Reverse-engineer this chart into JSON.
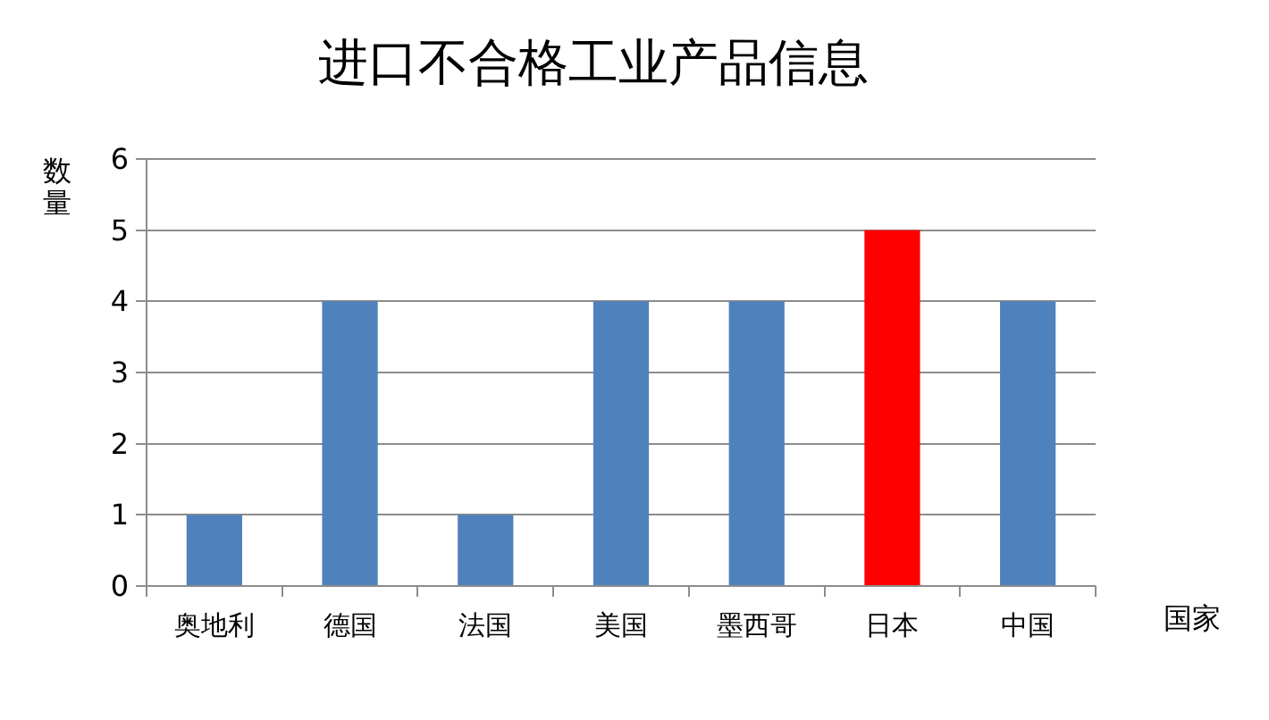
{
  "chart_data": {
    "type": "bar",
    "title": "进口不合格工业产品信息",
    "xlabel": "国家",
    "ylabel": "数量",
    "categories": [
      "奥地利",
      "德国",
      "法国",
      "美国",
      "墨西哥",
      "日本",
      "中国"
    ],
    "values": [
      1,
      4,
      1,
      4,
      4,
      5,
      4
    ],
    "colors": [
      "#4f81bd",
      "#4f81bd",
      "#4f81bd",
      "#4f81bd",
      "#4f81bd",
      "#ff0000",
      "#4f81bd"
    ],
    "ylim": [
      0,
      6
    ],
    "yticks": [
      0,
      1,
      2,
      3,
      4,
      5,
      6
    ],
    "grid": "y"
  }
}
